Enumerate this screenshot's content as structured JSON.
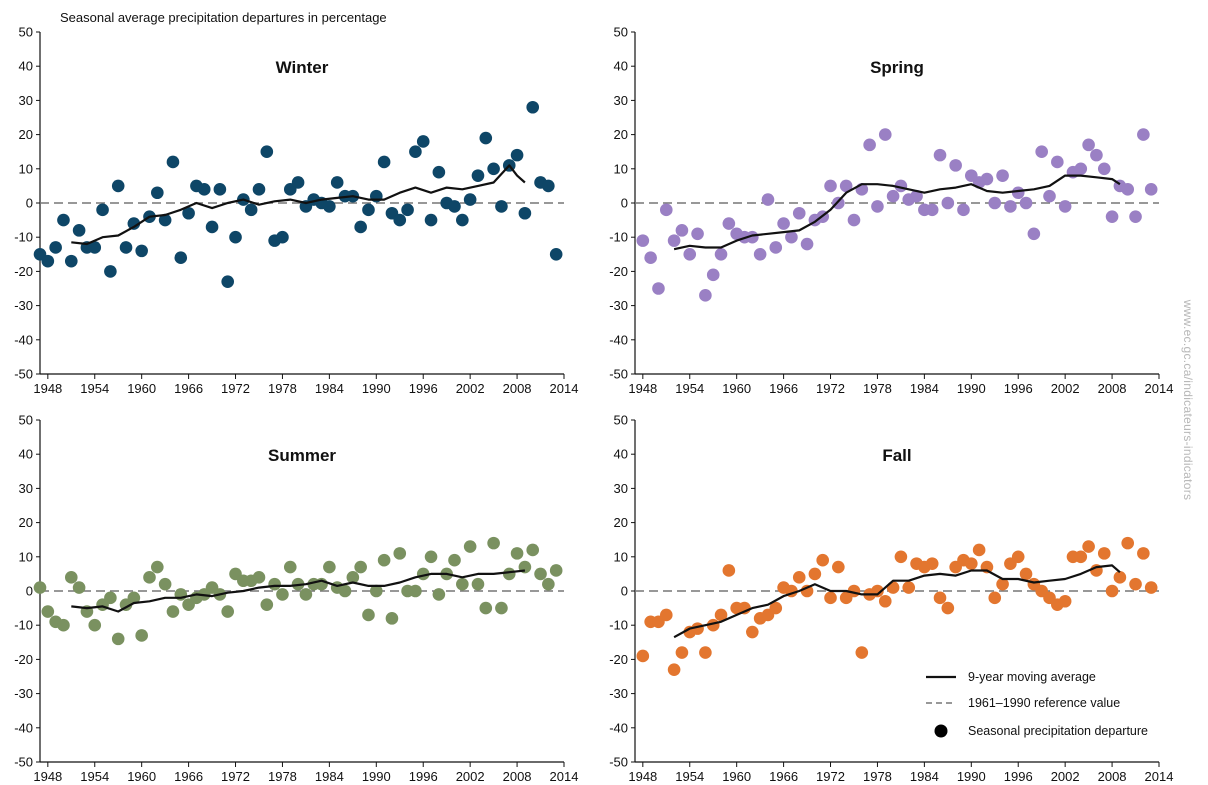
{
  "figure_title": "Seasonal average precipitation departures in percentage",
  "watermark": "www.ec.gc.ca/indicateurs-indicators",
  "legend": {
    "moving_average": "9-year moving average",
    "reference": "1961–1990 reference value",
    "departure": "Seasonal precipitation departure"
  },
  "colors": {
    "winter": "#0e4667",
    "spring": "#9a80c4",
    "summer": "#7a9160",
    "fall": "#e3762f",
    "moving_average": "#111111",
    "reference": "#777777"
  },
  "chart_data": [
    {
      "type": "scatter",
      "title": "Winter",
      "color": "#0e4667",
      "xlim": [
        1947,
        2014
      ],
      "ylim": [
        -50,
        50
      ],
      "xticks": [
        "1948",
        "1954",
        "1960",
        "1966",
        "1972",
        "1978",
        "1984",
        "1990",
        "1996",
        "2002",
        "2008",
        "2014"
      ],
      "yticks": [
        "50",
        "40",
        "30",
        "20",
        "10",
        "0",
        "-10",
        "-20",
        "-30",
        "-40",
        "-50"
      ],
      "reference_value": 0,
      "series": [
        {
          "name": "Seasonal precipitation departure",
          "x": [
            1947,
            1948,
            1949,
            1950,
            1951,
            1952,
            1953,
            1954,
            1955,
            1956,
            1957,
            1958,
            1959,
            1960,
            1961,
            1962,
            1963,
            1964,
            1965,
            1966,
            1967,
            1968,
            1969,
            1970,
            1971,
            1972,
            1973,
            1974,
            1975,
            1976,
            1977,
            1978,
            1979,
            1980,
            1981,
            1982,
            1983,
            1984,
            1985,
            1986,
            1987,
            1988,
            1989,
            1990,
            1991,
            1992,
            1993,
            1994,
            1995,
            1996,
            1997,
            1998,
            1999,
            2000,
            2001,
            2002,
            2003,
            2004,
            2005,
            2006,
            2007,
            2008,
            2009,
            2010,
            2011,
            2012,
            2013
          ],
          "y": [
            -15,
            -17,
            -13,
            -5,
            -17,
            -8,
            -13,
            -13,
            -2,
            -20,
            5,
            -13,
            -6,
            -14,
            -4,
            3,
            -5,
            12,
            -16,
            -3,
            5,
            4,
            -7,
            4,
            -23,
            -10,
            1,
            -2,
            4,
            15,
            -11,
            -10,
            4,
            6,
            -1,
            1,
            0,
            -1,
            6,
            2,
            2,
            -7,
            -2,
            2,
            12,
            -3,
            -5,
            -2,
            15,
            18,
            -5,
            9,
            0,
            -1,
            -5,
            1,
            8,
            19,
            10,
            -1,
            11,
            14,
            -3,
            28,
            6,
            5,
            -15
          ]
        },
        {
          "name": "9-year moving average",
          "x": [
            1951,
            1953,
            1955,
            1957,
            1959,
            1961,
            1963,
            1965,
            1967,
            1969,
            1971,
            1973,
            1975,
            1977,
            1979,
            1981,
            1983,
            1985,
            1987,
            1989,
            1991,
            1993,
            1995,
            1997,
            1999,
            2001,
            2003,
            2005,
            2007,
            2008,
            2009
          ],
          "y": [
            -11.5,
            -12,
            -10,
            -9.5,
            -7,
            -4,
            -3.5,
            -2,
            0,
            -1.5,
            0,
            1,
            -0.5,
            0.5,
            1,
            0,
            1,
            1.5,
            2,
            1,
            1,
            3,
            4.5,
            3,
            4.5,
            4,
            5,
            6,
            11,
            8,
            6
          ]
        }
      ]
    },
    {
      "type": "scatter",
      "title": "Spring",
      "color": "#9a80c4",
      "xlim": [
        1947,
        2014
      ],
      "ylim": [
        -50,
        50
      ],
      "xticks": [
        "1948",
        "1954",
        "1960",
        "1966",
        "1972",
        "1978",
        "1984",
        "1990",
        "1996",
        "2002",
        "2008",
        "2014"
      ],
      "yticks": [
        "50",
        "40",
        "30",
        "20",
        "10",
        "0",
        "-10",
        "-20",
        "-30",
        "-40",
        "-50"
      ],
      "reference_value": 0,
      "series": [
        {
          "name": "Seasonal precipitation departure",
          "x": [
            1948,
            1949,
            1950,
            1951,
            1952,
            1953,
            1954,
            1955,
            1956,
            1957,
            1958,
            1959,
            1960,
            1961,
            1962,
            1963,
            1964,
            1965,
            1966,
            1967,
            1968,
            1969,
            1970,
            1971,
            1972,
            1973,
            1974,
            1975,
            1976,
            1977,
            1978,
            1979,
            1980,
            1981,
            1982,
            1983,
            1984,
            1985,
            1986,
            1987,
            1988,
            1989,
            1990,
            1991,
            1992,
            1993,
            1994,
            1995,
            1996,
            1997,
            1998,
            1999,
            2000,
            2001,
            2002,
            2003,
            2004,
            2005,
            2006,
            2007,
            2008,
            2009,
            2010,
            2011,
            2012,
            2013
          ],
          "y": [
            -11,
            -16,
            -25,
            -2,
            -11,
            -8,
            -15,
            -9,
            -27,
            -21,
            -15,
            -6,
            -9,
            -10,
            -10,
            -15,
            1,
            -13,
            -6,
            -10,
            -3,
            -12,
            -5,
            -4,
            5,
            0,
            5,
            -5,
            4,
            17,
            -1,
            20,
            2,
            5,
            1,
            2,
            -2,
            -2,
            14,
            0,
            11,
            -2,
            8,
            6,
            7,
            0,
            8,
            -1,
            3,
            0,
            -9,
            15,
            2,
            12,
            -1,
            9,
            10,
            17,
            14,
            10,
            -4,
            5,
            4,
            -4,
            20,
            4
          ]
        },
        {
          "name": "9-year moving average",
          "x": [
            1952,
            1954,
            1956,
            1958,
            1960,
            1962,
            1964,
            1966,
            1968,
            1970,
            1972,
            1974,
            1976,
            1978,
            1980,
            1982,
            1984,
            1986,
            1988,
            1990,
            1992,
            1994,
            1996,
            1998,
            2000,
            2002,
            2004,
            2006,
            2008,
            2009
          ],
          "y": [
            -13.5,
            -12.5,
            -13,
            -13,
            -11,
            -9.5,
            -9,
            -8.5,
            -8,
            -5.5,
            -2,
            3,
            5.5,
            5.5,
            5,
            4,
            3,
            4,
            4.5,
            5.5,
            3.5,
            3,
            3.5,
            4,
            5,
            8,
            8,
            7.5,
            7,
            5.5
          ]
        }
      ]
    },
    {
      "type": "scatter",
      "title": "Summer",
      "color": "#7a9160",
      "xlim": [
        1947,
        2014
      ],
      "ylim": [
        -50,
        50
      ],
      "xticks": [
        "1948",
        "1954",
        "1960",
        "1966",
        "1972",
        "1978",
        "1984",
        "1990",
        "1996",
        "2002",
        "2008",
        "2014"
      ],
      "yticks": [
        "50",
        "40",
        "30",
        "20",
        "10",
        "0",
        "-10",
        "-20",
        "-30",
        "-40",
        "-50"
      ],
      "reference_value": 0,
      "series": [
        {
          "name": "Seasonal precipitation departure",
          "x": [
            1947,
            1948,
            1949,
            1950,
            1951,
            1952,
            1953,
            1954,
            1955,
            1956,
            1957,
            1958,
            1959,
            1960,
            1961,
            1962,
            1963,
            1964,
            1965,
            1966,
            1967,
            1968,
            1969,
            1970,
            1971,
            1972,
            1973,
            1974,
            1975,
            1976,
            1977,
            1978,
            1979,
            1980,
            1981,
            1982,
            1983,
            1984,
            1985,
            1986,
            1987,
            1988,
            1989,
            1990,
            1991,
            1992,
            1993,
            1994,
            1995,
            1996,
            1997,
            1998,
            1999,
            2000,
            2001,
            2002,
            2003,
            2004,
            2005,
            2006,
            2007,
            2008,
            2009,
            2010,
            2011,
            2012,
            2013
          ],
          "y": [
            1,
            -6,
            -9,
            -10,
            4,
            1,
            -6,
            -10,
            -4,
            -2,
            -14,
            -4,
            -2,
            -13,
            4,
            7,
            2,
            -6,
            -1,
            -4,
            -2,
            -1,
            1,
            -1,
            -6,
            5,
            3,
            3,
            4,
            -4,
            2,
            -1,
            7,
            2,
            -1,
            2,
            2,
            7,
            1,
            0,
            4,
            7,
            -7,
            0,
            9,
            -8,
            11,
            0,
            0,
            5,
            10,
            -1,
            5,
            9,
            2,
            13,
            2,
            -5,
            14,
            -5,
            5,
            11,
            7,
            12,
            5,
            2,
            6
          ]
        },
        {
          "name": "9-year moving average",
          "x": [
            1951,
            1953,
            1955,
            1957,
            1959,
            1961,
            1963,
            1965,
            1967,
            1969,
            1971,
            1973,
            1975,
            1977,
            1979,
            1981,
            1983,
            1985,
            1987,
            1989,
            1991,
            1993,
            1995,
            1997,
            1999,
            2001,
            2003,
            2005,
            2007,
            2009
          ],
          "y": [
            -4.5,
            -5,
            -4.5,
            -6,
            -3.5,
            -3,
            -2,
            -2,
            -1,
            -1.5,
            -0.5,
            0,
            1,
            1.5,
            1.5,
            2,
            3,
            1.5,
            2.5,
            1.5,
            1.5,
            2.5,
            4,
            5,
            5,
            4,
            5,
            5,
            5.5,
            6
          ]
        }
      ]
    },
    {
      "type": "scatter",
      "title": "Fall",
      "color": "#e3762f",
      "xlim": [
        1947,
        2014
      ],
      "ylim": [
        -50,
        50
      ],
      "xticks": [
        "1948",
        "1954",
        "1960",
        "1966",
        "1972",
        "1978",
        "1984",
        "1990",
        "1996",
        "2002",
        "2008",
        "2014"
      ],
      "yticks": [
        "50",
        "40",
        "30",
        "20",
        "10",
        "0",
        "-10",
        "-20",
        "-30",
        "-40",
        "-50"
      ],
      "reference_value": 0,
      "series": [
        {
          "name": "Seasonal precipitation departure",
          "x": [
            1948,
            1949,
            1950,
            1951,
            1952,
            1953,
            1954,
            1955,
            1956,
            1957,
            1958,
            1959,
            1960,
            1961,
            1962,
            1963,
            1964,
            1965,
            1966,
            1967,
            1968,
            1969,
            1970,
            1971,
            1972,
            1973,
            1974,
            1975,
            1976,
            1977,
            1978,
            1979,
            1980,
            1981,
            1982,
            1983,
            1984,
            1985,
            1986,
            1987,
            1988,
            1989,
            1990,
            1991,
            1992,
            1993,
            1994,
            1995,
            1996,
            1997,
            1998,
            1999,
            2000,
            2001,
            2002,
            2003,
            2004,
            2005,
            2006,
            2007,
            2008,
            2009,
            2010,
            2011,
            2012,
            2013
          ],
          "y": [
            -19,
            -9,
            -9,
            -7,
            -23,
            -18,
            -12,
            -11,
            -18,
            -10,
            -7,
            6,
            -5,
            -5,
            -12,
            -8,
            -7,
            -5,
            1,
            0,
            4,
            0,
            5,
            9,
            -2,
            7,
            -2,
            0,
            -18,
            -1,
            0,
            -3,
            1,
            10,
            1,
            8,
            7,
            8,
            -2,
            -5,
            7,
            9,
            8,
            12,
            7,
            -2,
            2,
            8,
            10,
            5,
            2,
            0,
            -2,
            -4,
            -3,
            10,
            10,
            13,
            6,
            11,
            0,
            4,
            14,
            2,
            11,
            1
          ]
        },
        {
          "name": "9-year moving average",
          "x": [
            1952,
            1954,
            1956,
            1958,
            1960,
            1962,
            1964,
            1966,
            1968,
            1970,
            1972,
            1974,
            1976,
            1978,
            1980,
            1982,
            1984,
            1986,
            1988,
            1990,
            1992,
            1994,
            1996,
            1998,
            2000,
            2002,
            2004,
            2006,
            2008,
            2009
          ],
          "y": [
            -13.5,
            -11,
            -10,
            -9,
            -7,
            -5,
            -4,
            -1.5,
            0,
            2,
            0,
            0,
            -1,
            -1,
            3,
            3,
            4.5,
            5,
            4.5,
            6,
            6,
            3.5,
            3.5,
            2.5,
            3,
            3.5,
            5,
            7,
            7.5,
            5.5
          ]
        }
      ]
    }
  ]
}
